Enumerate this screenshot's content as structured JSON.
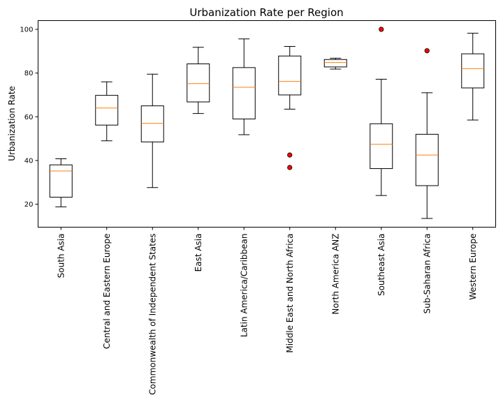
{
  "chart_data": {
    "type": "boxplot",
    "title": "Urbanization Rate per Region",
    "xlabel": "",
    "ylabel": "Urbanization Rate",
    "ylim": [
      9.5,
      104
    ],
    "yticks": [
      20,
      40,
      60,
      80,
      100
    ],
    "grid": false,
    "legend": "none",
    "colors": {
      "box": "#000000",
      "median": "#ff7f0e",
      "outlier_fill": "#ff0000",
      "outlier_edge": "#000000"
    },
    "categories": [
      "South Asia",
      "Central and Eastern Europe",
      "Commonwealth of Independent States",
      "East Asia",
      "Latin America/Caribbean",
      "Middle East and North Africa",
      "North America ANZ",
      "Southeast Asia",
      "Sub-Saharan Africa",
      "Western Europe"
    ],
    "boxes": [
      {
        "whislo": 18.8,
        "q1": 23.2,
        "med": 35.2,
        "q3": 38.0,
        "whishi": 40.8,
        "fliers": []
      },
      {
        "whislo": 49.0,
        "q1": 56.2,
        "med": 64.0,
        "q3": 69.8,
        "whishi": 76.0,
        "fliers": []
      },
      {
        "whislo": 27.6,
        "q1": 48.5,
        "med": 57.0,
        "q3": 65.0,
        "whishi": 79.5,
        "fliers": []
      },
      {
        "whislo": 61.5,
        "q1": 66.8,
        "med": 75.2,
        "q3": 84.2,
        "whishi": 91.8,
        "fliers": []
      },
      {
        "whislo": 51.8,
        "q1": 59.0,
        "med": 73.5,
        "q3": 82.5,
        "whishi": 95.6,
        "fliers": []
      },
      {
        "whislo": 63.5,
        "q1": 70.0,
        "med": 76.2,
        "q3": 87.8,
        "whishi": 92.2,
        "fliers": [
          42.5,
          36.8
        ]
      },
      {
        "whislo": 81.8,
        "q1": 82.8,
        "med": 84.8,
        "q3": 86.2,
        "whishi": 86.8,
        "fliers": []
      },
      {
        "whislo": 24.0,
        "q1": 36.3,
        "med": 47.4,
        "q3": 56.8,
        "whishi": 77.2,
        "fliers": [
          100.0
        ]
      },
      {
        "whislo": 13.5,
        "q1": 28.5,
        "med": 42.5,
        "q3": 52.0,
        "whishi": 71.0,
        "fliers": [
          90.2
        ]
      },
      {
        "whislo": 58.5,
        "q1": 73.2,
        "med": 82.0,
        "q3": 88.8,
        "whishi": 98.2,
        "fliers": []
      }
    ]
  }
}
